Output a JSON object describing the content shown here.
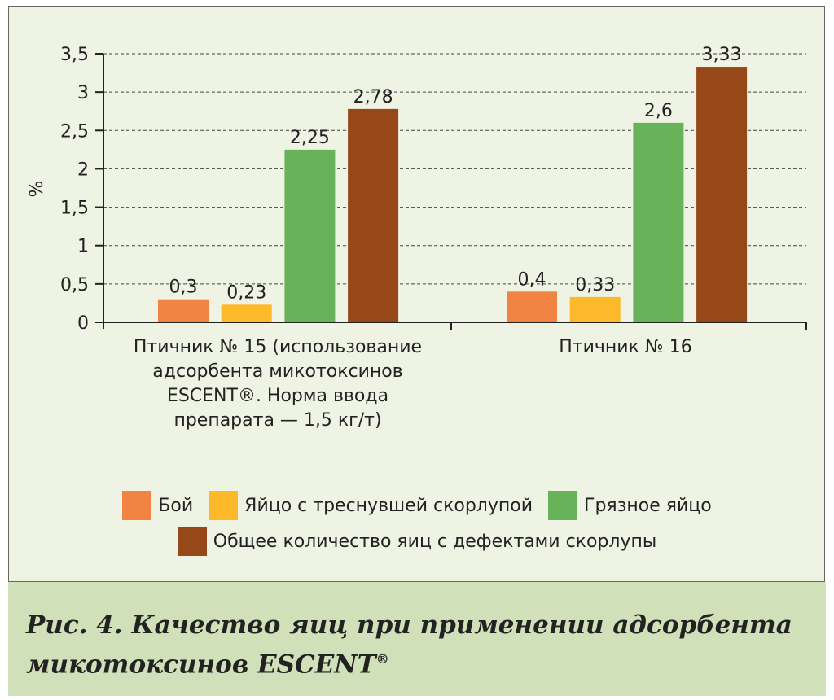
{
  "chart_data": {
    "type": "bar",
    "ylabel": "%",
    "ylim": [
      0,
      3.5
    ],
    "yticks": [
      "0",
      "0,5",
      "1",
      "1,5",
      "2",
      "2,5",
      "3",
      "3,5"
    ],
    "grid": "dashed horizontal",
    "categories": [
      "Птичник № 15 (использование адсорбента микотоксинов ESCENT®. Норма ввода препарата — 1,5 кг/т)",
      "Птичник № 16"
    ],
    "category_lines": [
      [
        "Птичник № 15 (использование",
        "адсорбента микотоксинов",
        "ESCENT®. Норма ввода",
        "препарата — 1,5 кг/т)"
      ],
      [
        "Птичник № 16"
      ]
    ],
    "series": [
      {
        "name": "Бой",
        "color": "#f28443",
        "values": [
          0.3,
          0.4
        ],
        "labels": [
          "0,3",
          "0,4"
        ]
      },
      {
        "name": "Яйцо с треснувшей скорлупой",
        "color": "#fdb92a",
        "values": [
          0.23,
          0.33
        ],
        "labels": [
          "0,23",
          "0,33"
        ]
      },
      {
        "name": "Грязное яйцо",
        "color": "#68b25a",
        "values": [
          2.25,
          2.6
        ],
        "labels": [
          "2,25",
          "2,6"
        ]
      },
      {
        "name": "Общее количество яиц с дефектами скорлупы",
        "color": "#974819",
        "values": [
          2.78,
          3.33
        ],
        "labels": [
          "2,78",
          "3,33"
        ]
      }
    ],
    "legend": "bottom"
  },
  "caption": {
    "line1": "Рис. 4. Качество яиц при применении адсорбента",
    "line2": "микотоксинов ESCENT",
    "mark": "®"
  }
}
